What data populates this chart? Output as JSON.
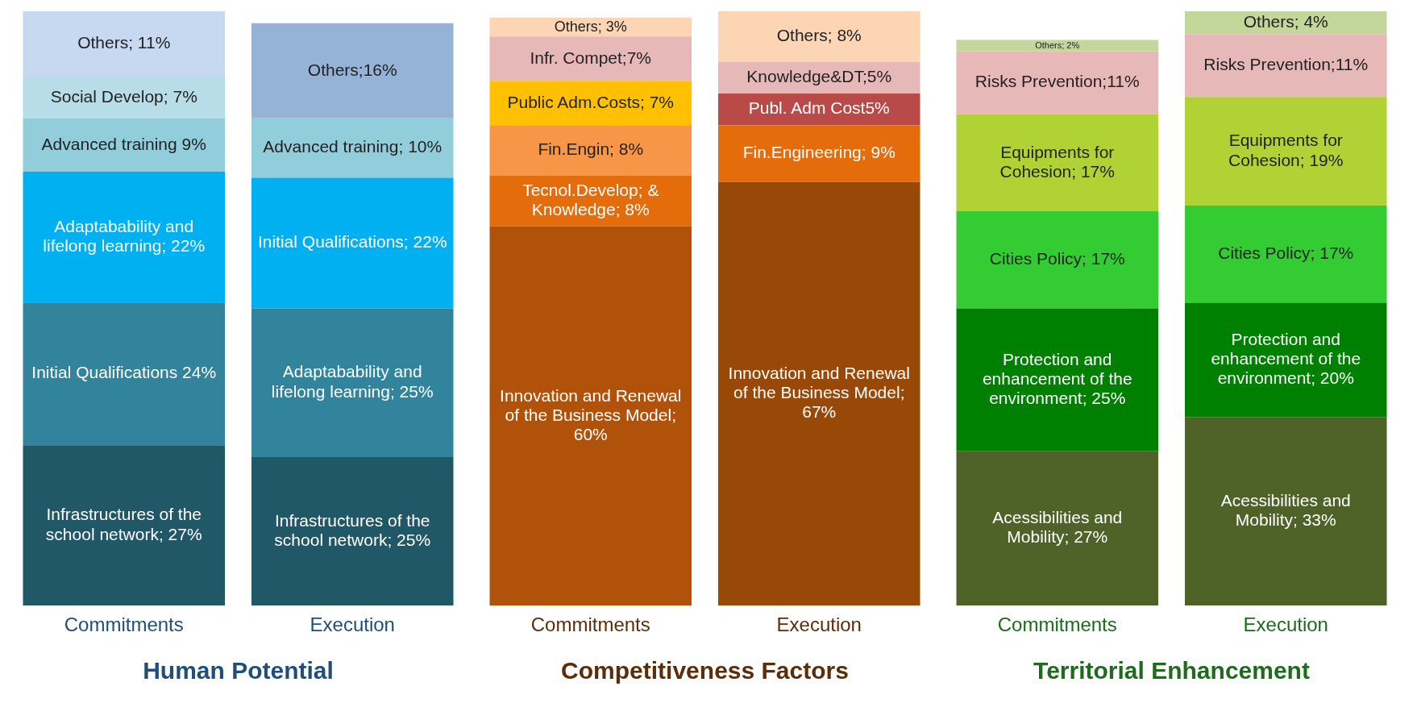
{
  "chart_data": [
    {
      "type": "bar",
      "stacked": true,
      "title": "Human Potential",
      "categories": [
        "Commitments",
        "Execution"
      ],
      "series": [
        {
          "values": [
            27,
            25
          ],
          "colors": [
            "#215868",
            "#215868"
          ],
          "value_labels": [
            "Infrastructures of the school network; 27%",
            "Infrastructures of the school network; 25%"
          ]
        },
        {
          "values": [
            24,
            25
          ],
          "colors": [
            "#31849b",
            "#31849b"
          ],
          "value_labels": [
            "Initial Qualifications 24%",
            "Adaptabability and lifelong learning; 25%"
          ]
        },
        {
          "values": [
            22,
            22
          ],
          "colors": [
            "#00b0f0",
            "#00b0f0"
          ],
          "value_labels": [
            "Adaptabability and lifelong learning; 22%",
            "Initial Qualifications; 22%"
          ]
        },
        {
          "values": [
            9,
            10
          ],
          "colors": [
            "#92cddc",
            "#92cddc"
          ],
          "value_labels": [
            "Advanced training 9%",
            "Advanced training; 10%"
          ]
        },
        {
          "values": [
            7,
            16
          ],
          "colors": [
            "#b7dee8",
            "#95b3d7"
          ],
          "value_labels": [
            "Social Develop; 7%",
            "Others;16%"
          ]
        },
        {
          "values": [
            11,
            null
          ],
          "colors": [
            "#c6d9f1",
            "#c6d9f1"
          ],
          "value_labels": [
            "Others; 11%",
            null
          ]
        }
      ]
    },
    {
      "type": "bar",
      "stacked": true,
      "title": "Competitiveness Factors",
      "categories": [
        "Commitments",
        "Execution"
      ],
      "series": [
        {
          "values": [
            60,
            67
          ],
          "colors": [
            "#b1520a",
            "#984807"
          ],
          "value_labels": [
            "Innovation and Renewal of the Business Model; 60%",
            "Innovation and Renewal of the Business Model; 67%"
          ]
        },
        {
          "values": [
            8,
            9
          ],
          "colors": [
            "#e46c0a",
            "#e46c0a"
          ],
          "value_labels": [
            "Tecnol.Develop; & Knowledge; 8%",
            "Fin.Engineering; 9%"
          ]
        },
        {
          "values": [
            8,
            5
          ],
          "colors": [
            "#f79646",
            "#b94a48"
          ],
          "value_labels": [
            "Fin.Engin; 8%",
            "Publ. Adm Cost5%"
          ]
        },
        {
          "values": [
            7,
            5
          ],
          "colors": [
            "#ffc000",
            "#e6b9b8"
          ],
          "value_labels": [
            "Public Adm.Costs; 7%",
            "Knowledge&DT;5%"
          ]
        },
        {
          "values": [
            7,
            8
          ],
          "colors": [
            "#e6b9b8",
            "#fcd5b4"
          ],
          "value_labels": [
            "Infr. Compet;7%",
            "Others; 8%"
          ]
        },
        {
          "values": [
            3,
            null
          ],
          "colors": [
            "#fcd5b4",
            "#fcd5b4"
          ],
          "value_labels": [
            "Others; 3%",
            null
          ]
        }
      ]
    },
    {
      "type": "bar",
      "stacked": true,
      "title": "Territorial Enhancement",
      "categories": [
        "Commitments",
        "Execution"
      ],
      "series": [
        {
          "values": [
            27,
            33
          ],
          "colors": [
            "#4f6228",
            "#4f6228"
          ],
          "value_labels": [
            "Acessibilities and Mobility; 27%",
            "Acessibilities and Mobility; 33%"
          ]
        },
        {
          "values": [
            25,
            20
          ],
          "colors": [
            "#008000",
            "#008000"
          ],
          "value_labels": [
            "Protection and enhancement of the environment; 25%",
            "Protection and enhancement of the environment; 20%"
          ]
        },
        {
          "values": [
            17,
            17
          ],
          "colors": [
            "#33cc33",
            "#33cc33"
          ],
          "value_labels": [
            "Cities Policy; 17%",
            "Cities Policy; 17%"
          ]
        },
        {
          "values": [
            17,
            19
          ],
          "colors": [
            "#b0d235",
            "#b0d235"
          ],
          "value_labels": [
            "Equipments for Cohesion; 17%",
            "Equipments for Cohesion; 19%"
          ]
        },
        {
          "values": [
            11,
            11
          ],
          "colors": [
            "#e6b9b8",
            "#e6b9b8"
          ],
          "value_labels": [
            "Risks Prevention;11%",
            "Risks Prevention;11%"
          ]
        },
        {
          "values": [
            2,
            4
          ],
          "colors": [
            "#c4d79b",
            "#c4d79b"
          ],
          "value_labels": [
            "Others; 2%",
            "Others; 4%"
          ]
        }
      ]
    }
  ]
}
